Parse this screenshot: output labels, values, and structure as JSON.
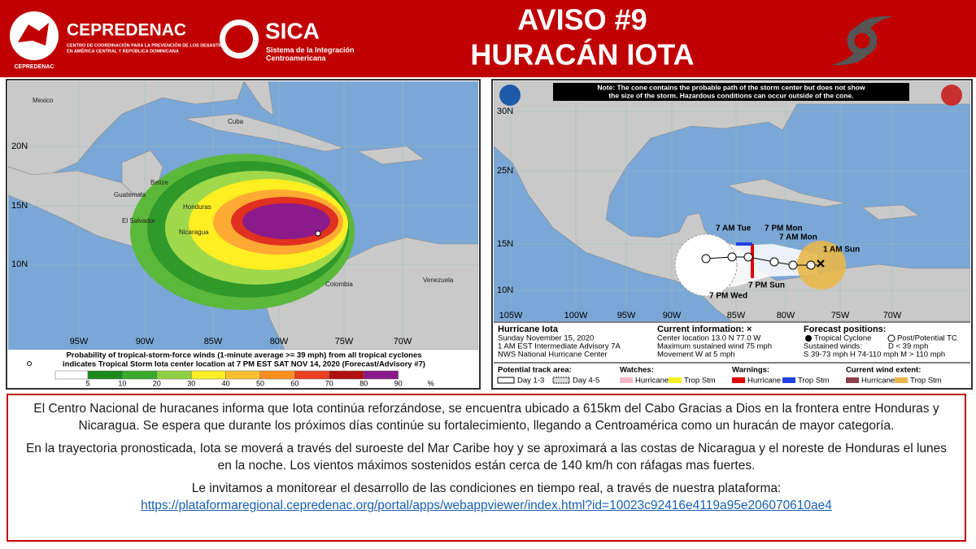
{
  "header": {
    "org1_name": "CEPREDENAC",
    "org1_sub_1": "CENTRO DE COORDINACIÓN PARA LA PREVENCIÓN DE LOS DESASTRES",
    "org1_sub_2": "EN AMÉRICA CENTRAL Y REPÚBLICA DOMINICANA",
    "org1_logo_text": "CEPREDENAC",
    "org2_name": "SICA",
    "org2_sub_1": "Sistema de la Integración",
    "org2_sub_2": "Centroamericana",
    "title_line1": "AVISO #9",
    "title_line2": "HURACÁN IOTA"
  },
  "left_map": {
    "lat_labels": [
      "20N",
      "15N",
      "10N"
    ],
    "lon_labels": [
      "95W",
      "90W",
      "85W",
      "80W",
      "75W",
      "70W"
    ],
    "places": [
      "Mexico",
      "Cuba",
      "Belize",
      "Guatemala",
      "Honduras",
      "El Salvador",
      "Nicaragua",
      "Colombia",
      "Venezuela"
    ],
    "caption_1": "Probability of tropical-storm-force winds (1-minute average >= 39 mph) from all tropical cyclones",
    "caption_2": "indicates Tropical Storm Iota center location at 7 PM EST SAT NOV 14, 2020 (Forecast/Advisory #7)",
    "scale_labels": [
      "5",
      "10",
      "20",
      "30",
      "40",
      "50",
      "60",
      "70",
      "80",
      "90"
    ],
    "scale_unit": "%"
  },
  "right_map": {
    "note": "Note: The cone contains the probable path of the storm center but does not show the size of the storm. Hazardous conditions can occur outside of the cone.",
    "lat_labels": [
      "30N",
      "25N",
      "15N",
      "10N"
    ],
    "lon_labels": [
      "105W",
      "100W",
      "95W",
      "90W",
      "85W",
      "80W",
      "75W",
      "70W"
    ],
    "track_labels": [
      "7 AM Tue",
      "7 PM Mon",
      "7 AM Mon",
      "1 AM Sun",
      "7 PM Wed",
      "7 PM Sun"
    ],
    "storm_name": "Hurricane Iota",
    "date": "Sunday November 15, 2020",
    "advisory": "1 AM EST Intermediate Advisory 7A",
    "center": "NWS National Hurricane Center",
    "current_title": "Current information: ×",
    "current_location": "Center location 13.0 N 77.0 W",
    "current_wind": "Maximum sustained wind 75 mph",
    "current_movement": "Movement W at 5 mph",
    "forecast_title": "Forecast positions:",
    "forecast_tc": "Tropical Cyclone",
    "forecast_post": "Post/Potential TC",
    "forecast_winds": "Sustained winds:",
    "forecast_d": "D < 39 mph",
    "forecast_scale": "S 39-73 mph  H 74-110 mph  M > 110 mph",
    "legend_track": "Potential track area:",
    "legend_day13": "Day 1-3",
    "legend_day45": "Day 4-5",
    "legend_watches": "Watches:",
    "legend_watch_hur": "Hurricane",
    "legend_watch_ts": "Trop Stm",
    "legend_warnings": "Warnings:",
    "legend_warn_hur": "Hurricane",
    "legend_warn_ts": "Trop Stm",
    "legend_wind": "Current wind extent:",
    "legend_wind_hur": "Hurricane",
    "legend_wind_ts": "Trop Stm"
  },
  "body": {
    "paragraph_1": "El Centro Nacional de huracanes informa que Iota continúa reforzándose, se encuentra ubicado a 615km del Cabo Gracias a Dios en la frontera entre Honduras y Nicaragua. Se espera que durante los próximos días continúe su fortalecimiento, llegando a Centroamérica como un huracán de mayor categoría.",
    "paragraph_2": "En la trayectoria pronosticada, Iota se moverá a través del suroeste del Mar Caribe hoy y se aproximará a las costas de Nicaragua y el noreste de Honduras el lunes en la noche. Los vientos máximos sostenidos están cerca de 140 km/h con ráfagas mas fuertes.",
    "paragraph_3": "Le invitamos a monitorear el desarrollo de las condiciones en tiempo real, a través de nuestra plataforma:",
    "link": "https://plataformaregional.cepredenac.org/portal/apps/webappviewer/index.html?id=10023c92416e4119a95e206070610ae4"
  }
}
